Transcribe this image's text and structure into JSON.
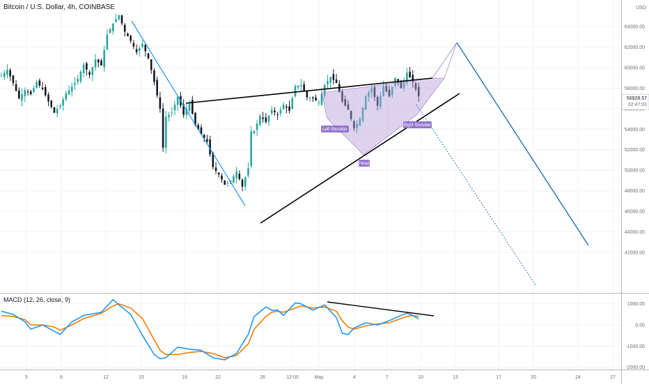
{
  "header": {
    "title": "Bitcoin / U.S. Dollar, 4h, COINBASE",
    "macd_title": "MACD (12, 26, close, 9)",
    "currency": "USD"
  },
  "chart_data": [
    {
      "type": "candlestick",
      "title": "Bitcoin / U.S. Dollar, 4h, COINBASE",
      "ylim": [
        41000,
        66000
      ],
      "yticks": [
        42000,
        44000,
        46000,
        48000,
        50000,
        52000,
        54000,
        56000,
        58000,
        60000,
        62000,
        64000
      ],
      "ytick_labels": [
        "42000.00",
        "44000.00",
        "46000.00",
        "48000.00",
        "50000.00",
        "52000.00",
        "54000.00",
        "56000.00",
        "58000.00",
        "60000.00",
        "62000.00",
        "64000.00"
      ],
      "xtick_labels": [
        "5",
        "8",
        "12",
        "15",
        "19",
        "22",
        "26",
        "12:00",
        "May",
        "4",
        "7",
        "10",
        "13",
        "17",
        "20",
        "24",
        "27"
      ],
      "current_price": "56928.57",
      "countdown": "02:47:03",
      "close_path": [
        [
          0,
          59200
        ],
        [
          2,
          59800
        ],
        [
          4,
          58500
        ],
        [
          6,
          57000
        ],
        [
          8,
          57800
        ],
        [
          10,
          57400
        ],
        [
          12,
          58600
        ],
        [
          14,
          57900
        ],
        [
          16,
          56700
        ],
        [
          18,
          55600
        ],
        [
          20,
          56300
        ],
        [
          22,
          57500
        ],
        [
          24,
          58100
        ],
        [
          26,
          58900
        ],
        [
          28,
          60300
        ],
        [
          30,
          59300
        ],
        [
          32,
          60800
        ],
        [
          34,
          60200
        ],
        [
          36,
          63200
        ],
        [
          38,
          64300
        ],
        [
          40,
          65100
        ],
        [
          42,
          63500
        ],
        [
          44,
          62600
        ],
        [
          46,
          61500
        ],
        [
          48,
          62300
        ],
        [
          50,
          60900
        ],
        [
          52,
          58600
        ],
        [
          54,
          56000
        ],
        [
          55,
          52200
        ],
        [
          56,
          55200
        ],
        [
          58,
          55600
        ],
        [
          60,
          57200
        ],
        [
          62,
          55400
        ],
        [
          64,
          56600
        ],
        [
          66,
          54400
        ],
        [
          68,
          53500
        ],
        [
          70,
          52800
        ],
        [
          72,
          50300
        ],
        [
          74,
          49600
        ],
        [
          76,
          48600
        ],
        [
          78,
          48900
        ],
        [
          80,
          49900
        ],
        [
          82,
          48400
        ],
        [
          84,
          50200
        ],
        [
          85,
          53800
        ],
        [
          86,
          53800
        ],
        [
          88,
          55300
        ],
        [
          90,
          54700
        ],
        [
          92,
          55900
        ],
        [
          94,
          55400
        ],
        [
          96,
          56400
        ],
        [
          98,
          55800
        ],
        [
          100,
          58200
        ],
        [
          102,
          58300
        ],
        [
          104,
          57100
        ],
        [
          106,
          57000
        ],
        [
          108,
          56600
        ],
        [
          110,
          58300
        ],
        [
          112,
          59100
        ],
        [
          114,
          58500
        ],
        [
          116,
          56700
        ],
        [
          118,
          55900
        ],
        [
          120,
          54100
        ],
        [
          122,
          55000
        ],
        [
          124,
          57200
        ],
        [
          126,
          58000
        ],
        [
          128,
          56300
        ],
        [
          130,
          58200
        ],
        [
          132,
          57200
        ],
        [
          134,
          59000
        ],
        [
          136,
          58000
        ],
        [
          138,
          59500
        ],
        [
          140,
          58600
        ],
        [
          142,
          57200
        ]
      ],
      "macd": {
        "ylim": [
          -2200,
          1400
        ],
        "yticks": [
          1000,
          0,
          -1000,
          -2000
        ],
        "ytick_labels": [
          "1000.00",
          "0.00",
          "-1000.00",
          "-2000.00"
        ],
        "macd_line": [
          [
            0,
            650
          ],
          [
            4,
            500
          ],
          [
            8,
            150
          ],
          [
            10,
            -200
          ],
          [
            14,
            0
          ],
          [
            18,
            -300
          ],
          [
            20,
            -450
          ],
          [
            24,
            150
          ],
          [
            28,
            450
          ],
          [
            34,
            600
          ],
          [
            38,
            1200
          ],
          [
            40,
            950
          ],
          [
            44,
            500
          ],
          [
            48,
            -500
          ],
          [
            52,
            -1400
          ],
          [
            54,
            -1600
          ],
          [
            56,
            -1550
          ],
          [
            60,
            -1050
          ],
          [
            64,
            -1150
          ],
          [
            68,
            -1200
          ],
          [
            72,
            -1550
          ],
          [
            76,
            -1650
          ],
          [
            80,
            -1350
          ],
          [
            84,
            -450
          ],
          [
            86,
            400
          ],
          [
            90,
            850
          ],
          [
            92,
            700
          ],
          [
            94,
            700
          ],
          [
            96,
            450
          ],
          [
            100,
            1050
          ],
          [
            102,
            1000
          ],
          [
            106,
            700
          ],
          [
            110,
            950
          ],
          [
            114,
            350
          ],
          [
            116,
            -400
          ],
          [
            118,
            -450
          ],
          [
            120,
            -150
          ],
          [
            124,
            100
          ],
          [
            128,
            0
          ],
          [
            132,
            200
          ],
          [
            136,
            450
          ],
          [
            138,
            550
          ],
          [
            140,
            450
          ],
          [
            142,
            280
          ]
        ],
        "signal_line": [
          [
            0,
            450
          ],
          [
            4,
            400
          ],
          [
            8,
            250
          ],
          [
            10,
            0
          ],
          [
            14,
            0
          ],
          [
            18,
            -100
          ],
          [
            20,
            -250
          ],
          [
            24,
            0
          ],
          [
            28,
            300
          ],
          [
            34,
            550
          ],
          [
            38,
            900
          ],
          [
            40,
            1000
          ],
          [
            44,
            800
          ],
          [
            48,
            300
          ],
          [
            52,
            -700
          ],
          [
            54,
            -1200
          ],
          [
            56,
            -1400
          ],
          [
            60,
            -1400
          ],
          [
            64,
            -1300
          ],
          [
            68,
            -1250
          ],
          [
            72,
            -1350
          ],
          [
            76,
            -1550
          ],
          [
            80,
            -1450
          ],
          [
            84,
            -900
          ],
          [
            86,
            -200
          ],
          [
            90,
            400
          ],
          [
            92,
            600
          ],
          [
            94,
            650
          ],
          [
            96,
            600
          ],
          [
            100,
            800
          ],
          [
            102,
            900
          ],
          [
            106,
            800
          ],
          [
            110,
            850
          ],
          [
            114,
            650
          ],
          [
            116,
            200
          ],
          [
            118,
            -100
          ],
          [
            120,
            -200
          ],
          [
            124,
            -50
          ],
          [
            128,
            50
          ],
          [
            132,
            100
          ],
          [
            136,
            300
          ],
          [
            138,
            400
          ],
          [
            140,
            450
          ],
          [
            142,
            400
          ]
        ]
      }
    }
  ],
  "annotations": {
    "left_shoulder": "Left Shoulder",
    "head": "Head",
    "right_shoulder": "Right Shoulder"
  },
  "colors": {
    "up": "#26a69a",
    "down": "#131722",
    "macd": "#2196f3",
    "signal": "#f57c00",
    "projection": "#1e6fb8",
    "pattern_fill": "#b39ddb"
  }
}
